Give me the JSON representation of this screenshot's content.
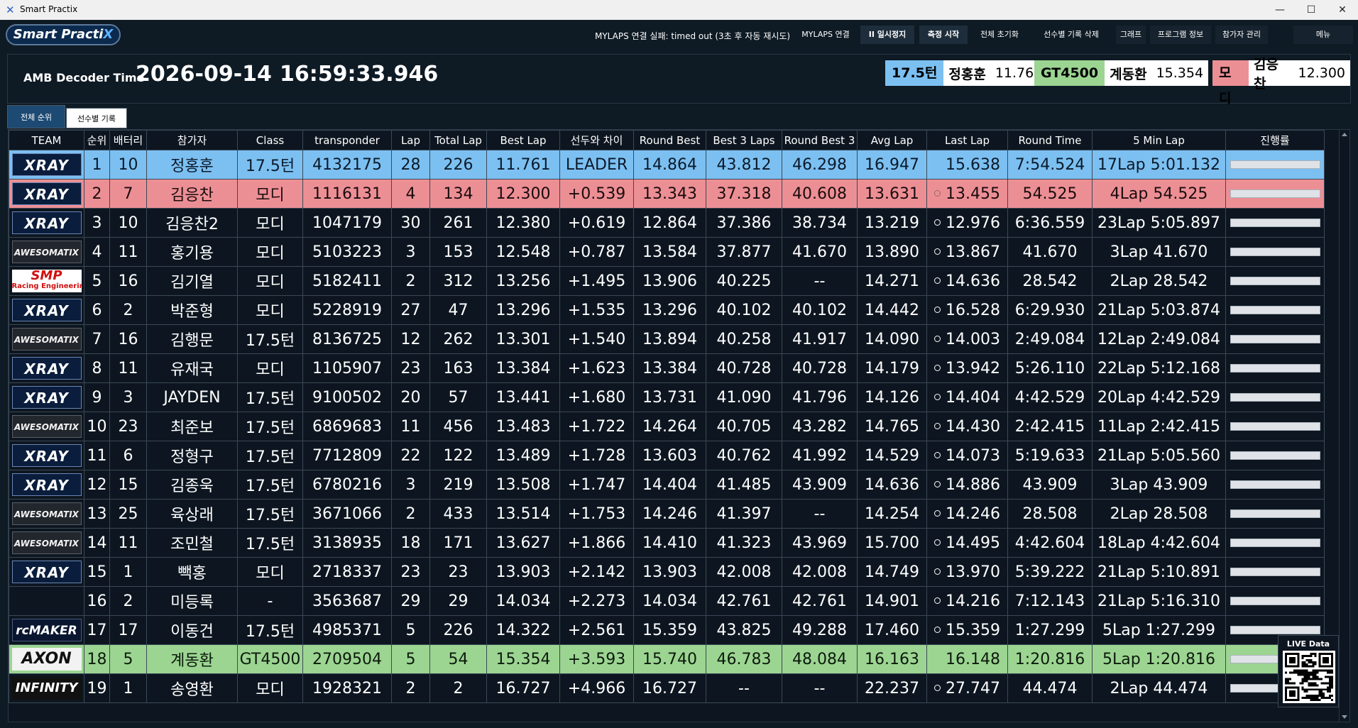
{
  "window": {
    "title": "Smart Practix",
    "icon": "x-logo-icon",
    "minimize_glyph": "—",
    "maximize_glyph": "☐",
    "close_glyph": "✕"
  },
  "toolbar": {
    "logo_prefix": "Smart Practi",
    "logo_suffix": "X",
    "status_message": "MYLAPS 연결 실패: timed out (3초 후 자동 재시도)",
    "buttons": [
      "MYLAPS 연결",
      "II 일시정지",
      "측정 시작",
      "전체 초기화",
      "선수별 기록 삭제",
      "그래프",
      "프로그램 정보",
      "참가자 관리",
      "메뉴"
    ]
  },
  "decoder": {
    "label": "AMB Decoder Time",
    "date": "2026-09-14",
    "time": "16:59:33.946"
  },
  "class_leaders": [
    {
      "class": "17.5턴",
      "name": "정홍훈",
      "time": "11.761",
      "color": "#7cc0f2"
    },
    {
      "class": "GT4500",
      "name": "계동환",
      "time": "15.354",
      "color": "#9cd592"
    },
    {
      "class": "모디",
      "name": "김응찬",
      "time": "12.300",
      "color": "#ec8f95"
    }
  ],
  "tabs": [
    "전체 순위",
    "선수별 기록"
  ],
  "table": {
    "columns": [
      "TEAM",
      "순위",
      "배터리",
      "참가자",
      "Class",
      "transponder",
      "Lap",
      "Total Lap",
      "Best Lap",
      "선두와 차이",
      "Round Best",
      "Best 3 Laps",
      "Round Best 3",
      "Avg Lap",
      "Last Lap",
      "Round Time",
      "5 Min Lap",
      "진행률"
    ],
    "rows": [
      {
        "team": "XRAY",
        "rank": "1",
        "battery": "10",
        "name": "정홍훈",
        "class": "17.5턴",
        "transponder": "4132175",
        "lap": "28",
        "total_lap": "226",
        "best_lap": "11.761",
        "gap": "LEADER",
        "round_best": "14.864",
        "best3": "43.812",
        "round_best3": "46.298",
        "avg": "16.947",
        "last": "15.638",
        "round_time": "7:54.524",
        "five_min": "17Lap 5:01.132",
        "highlight": "blue",
        "marker": false,
        "progress": 1.0
      },
      {
        "team": "XRAY",
        "rank": "2",
        "battery": "7",
        "name": "김응찬",
        "class": "모디",
        "transponder": "1116131",
        "lap": "4",
        "total_lap": "134",
        "best_lap": "12.300",
        "gap": "+0.539",
        "round_best": "13.343",
        "best3": "37.318",
        "round_best3": "40.608",
        "avg": "13.631",
        "last": "13.455",
        "round_time": "54.525",
        "five_min": "4Lap 54.525",
        "highlight": "red",
        "marker": true,
        "progress": 1.0
      },
      {
        "team": "XRAY",
        "rank": "3",
        "battery": "10",
        "name": "김응찬2",
        "class": "모디",
        "transponder": "1047179",
        "lap": "30",
        "total_lap": "261",
        "best_lap": "12.380",
        "gap": "+0.619",
        "round_best": "12.864",
        "best3": "37.386",
        "round_best3": "38.734",
        "avg": "13.219",
        "last": "12.976",
        "round_time": "6:36.559",
        "five_min": "23Lap 5:05.897",
        "highlight": "",
        "marker": true,
        "progress": 1.0
      },
      {
        "team": "AWESOMATIX",
        "rank": "4",
        "battery": "11",
        "name": "홍기용",
        "class": "모디",
        "transponder": "5103223",
        "lap": "3",
        "total_lap": "153",
        "best_lap": "12.548",
        "gap": "+0.787",
        "round_best": "13.584",
        "best3": "37.877",
        "round_best3": "41.670",
        "avg": "13.890",
        "last": "13.867",
        "round_time": "41.670",
        "five_min": "3Lap 41.670",
        "highlight": "",
        "marker": true,
        "progress": 1.0
      },
      {
        "team": "SMP Racing Engineering",
        "rank": "5",
        "battery": "16",
        "name": "김기열",
        "class": "모디",
        "transponder": "5182411",
        "lap": "2",
        "total_lap": "312",
        "best_lap": "13.256",
        "gap": "+1.495",
        "round_best": "13.906",
        "best3": "40.225",
        "round_best3": "--",
        "avg": "14.271",
        "last": "14.636",
        "round_time": "28.542",
        "five_min": "2Lap 28.542",
        "highlight": "",
        "marker": true,
        "progress": 1.0
      },
      {
        "team": "XRAY",
        "rank": "6",
        "battery": "2",
        "name": "박준형",
        "class": "모디",
        "transponder": "5228919",
        "lap": "27",
        "total_lap": "47",
        "best_lap": "13.296",
        "gap": "+1.535",
        "round_best": "13.296",
        "best3": "40.102",
        "round_best3": "40.102",
        "avg": "14.442",
        "last": "16.528",
        "round_time": "6:29.930",
        "five_min": "21Lap 5:03.874",
        "highlight": "",
        "marker": true,
        "progress": 1.0
      },
      {
        "team": "AWESOMATIX",
        "rank": "7",
        "battery": "16",
        "name": "김행문",
        "class": "17.5턴",
        "transponder": "8136725",
        "lap": "12",
        "total_lap": "262",
        "best_lap": "13.301",
        "gap": "+1.540",
        "round_best": "13.894",
        "best3": "40.258",
        "round_best3": "41.917",
        "avg": "14.090",
        "last": "14.003",
        "round_time": "2:49.084",
        "five_min": "12Lap 2:49.084",
        "highlight": "",
        "marker": true,
        "progress": 1.0
      },
      {
        "team": "XRAY",
        "rank": "8",
        "battery": "11",
        "name": "유재국",
        "class": "모디",
        "transponder": "1105907",
        "lap": "23",
        "total_lap": "163",
        "best_lap": "13.384",
        "gap": "+1.623",
        "round_best": "13.384",
        "best3": "40.728",
        "round_best3": "40.728",
        "avg": "14.179",
        "last": "13.942",
        "round_time": "5:26.110",
        "five_min": "22Lap 5:12.168",
        "highlight": "",
        "marker": true,
        "progress": 1.0
      },
      {
        "team": "XRAY",
        "rank": "9",
        "battery": "3",
        "name": "JAYDEN",
        "class": "17.5턴",
        "transponder": "9100502",
        "lap": "20",
        "total_lap": "57",
        "best_lap": "13.441",
        "gap": "+1.680",
        "round_best": "13.731",
        "best3": "41.090",
        "round_best3": "41.796",
        "avg": "14.126",
        "last": "14.404",
        "round_time": "4:42.529",
        "five_min": "20Lap 4:42.529",
        "highlight": "",
        "marker": true,
        "progress": 1.0
      },
      {
        "team": "AWESOMATIX",
        "rank": "10",
        "battery": "23",
        "name": "최준보",
        "class": "17.5턴",
        "transponder": "6869683",
        "lap": "11",
        "total_lap": "456",
        "best_lap": "13.483",
        "gap": "+1.722",
        "round_best": "14.264",
        "best3": "40.705",
        "round_best3": "43.282",
        "avg": "14.765",
        "last": "14.430",
        "round_time": "2:42.415",
        "five_min": "11Lap 2:42.415",
        "highlight": "",
        "marker": true,
        "progress": 1.0
      },
      {
        "team": "XRAY",
        "rank": "11",
        "battery": "6",
        "name": "정형구",
        "class": "17.5턴",
        "transponder": "7712809",
        "lap": "22",
        "total_lap": "122",
        "best_lap": "13.489",
        "gap": "+1.728",
        "round_best": "13.603",
        "best3": "40.762",
        "round_best3": "41.992",
        "avg": "14.529",
        "last": "14.073",
        "round_time": "5:19.633",
        "five_min": "21Lap 5:05.560",
        "highlight": "",
        "marker": true,
        "progress": 1.0
      },
      {
        "team": "XRAY",
        "rank": "12",
        "battery": "15",
        "name": "김종욱",
        "class": "17.5턴",
        "transponder": "6780216",
        "lap": "3",
        "total_lap": "219",
        "best_lap": "13.508",
        "gap": "+1.747",
        "round_best": "14.404",
        "best3": "41.485",
        "round_best3": "43.909",
        "avg": "14.636",
        "last": "14.886",
        "round_time": "43.909",
        "five_min": "3Lap 43.909",
        "highlight": "",
        "marker": true,
        "progress": 1.0
      },
      {
        "team": "AWESOMATIX",
        "rank": "13",
        "battery": "25",
        "name": "육상래",
        "class": "17.5턴",
        "transponder": "3671066",
        "lap": "2",
        "total_lap": "433",
        "best_lap": "13.514",
        "gap": "+1.753",
        "round_best": "14.246",
        "best3": "41.397",
        "round_best3": "--",
        "avg": "14.254",
        "last": "14.246",
        "round_time": "28.508",
        "five_min": "2Lap 28.508",
        "highlight": "",
        "marker": true,
        "progress": 1.0
      },
      {
        "team": "AWESOMATIX",
        "rank": "14",
        "battery": "11",
        "name": "조민철",
        "class": "17.5턴",
        "transponder": "3138935",
        "lap": "18",
        "total_lap": "171",
        "best_lap": "13.627",
        "gap": "+1.866",
        "round_best": "14.410",
        "best3": "41.323",
        "round_best3": "43.969",
        "avg": "15.700",
        "last": "14.495",
        "round_time": "4:42.604",
        "five_min": "18Lap 4:42.604",
        "highlight": "",
        "marker": true,
        "progress": 1.0
      },
      {
        "team": "XRAY",
        "rank": "15",
        "battery": "1",
        "name": "빽홍",
        "class": "모디",
        "transponder": "2718337",
        "lap": "23",
        "total_lap": "23",
        "best_lap": "13.903",
        "gap": "+2.142",
        "round_best": "13.903",
        "best3": "42.008",
        "round_best3": "42.008",
        "avg": "14.749",
        "last": "13.970",
        "round_time": "5:39.222",
        "five_min": "21Lap 5:10.891",
        "highlight": "",
        "marker": true,
        "progress": 1.0
      },
      {
        "team": "",
        "rank": "16",
        "battery": "2",
        "name": "미등록",
        "class": "-",
        "transponder": "3563687",
        "lap": "29",
        "total_lap": "29",
        "best_lap": "14.034",
        "gap": "+2.273",
        "round_best": "14.034",
        "best3": "42.761",
        "round_best3": "42.761",
        "avg": "14.901",
        "last": "14.216",
        "round_time": "7:12.143",
        "five_min": "21Lap 5:16.310",
        "highlight": "",
        "marker": true,
        "progress": 1.0
      },
      {
        "team": "rcMAKER",
        "rank": "17",
        "battery": "17",
        "name": "이동건",
        "class": "17.5턴",
        "transponder": "4985371",
        "lap": "5",
        "total_lap": "226",
        "best_lap": "14.322",
        "gap": "+2.561",
        "round_best": "15.359",
        "best3": "43.825",
        "round_best3": "49.288",
        "avg": "17.460",
        "last": "15.359",
        "round_time": "1:27.299",
        "five_min": "5Lap 1:27.299",
        "highlight": "",
        "marker": true,
        "progress": 1.0
      },
      {
        "team": "AXON",
        "rank": "18",
        "battery": "5",
        "name": "계동환",
        "class": "GT4500",
        "transponder": "2709504",
        "lap": "5",
        "total_lap": "54",
        "best_lap": "15.354",
        "gap": "+3.593",
        "round_best": "15.740",
        "best3": "46.783",
        "round_best3": "48.084",
        "avg": "16.163",
        "last": "16.148",
        "round_time": "1:20.816",
        "five_min": "5Lap 1:20.816",
        "highlight": "green",
        "marker": false,
        "progress": 1.0
      },
      {
        "team": "INFINITY",
        "rank": "19",
        "battery": "1",
        "name": "송영환",
        "class": "모디",
        "transponder": "1928321",
        "lap": "2",
        "total_lap": "2",
        "best_lap": "16.727",
        "gap": "+4.966",
        "round_best": "16.727",
        "best3": "--",
        "round_best3": "--",
        "avg": "22.237",
        "last": "27.747",
        "round_time": "44.474",
        "five_min": "2Lap 44.474",
        "highlight": "",
        "marker": true,
        "progress": 1.0
      }
    ]
  },
  "live_data": {
    "label": "LIVE Data",
    "icon": "qr-code-icon"
  }
}
